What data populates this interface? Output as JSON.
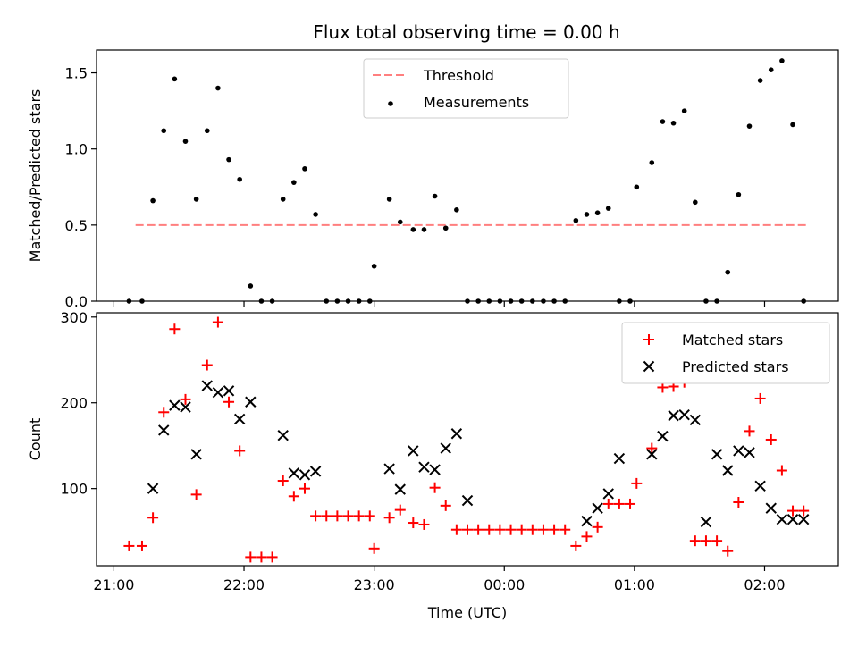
{
  "figure_title": "Flux total observing time = 0.00 h",
  "colors": {
    "threshold": "#ff7f7f",
    "measurements": "#000000",
    "matched": "#ff0000",
    "predicted": "#000000",
    "axes": "#000000"
  },
  "chart_data": [
    {
      "id": "ratio",
      "type": "scatter",
      "title": "Flux total observing time = 0.00 h",
      "xlabel": "",
      "ylabel": "Matched/Predicted stars",
      "xlim": [
        "20:52",
        "02:34"
      ],
      "ylim": [
        0,
        1.65
      ],
      "yticks": [
        0.0,
        0.5,
        1.0,
        1.5
      ],
      "ytick_labels": [
        "0.0",
        "0.5",
        "1.0",
        "1.5"
      ],
      "legend": "top-center",
      "series": [
        {
          "name": "Threshold",
          "style": "dashed-line",
          "x": [
            "21:10",
            "02:20"
          ],
          "y": [
            0.5,
            0.5
          ]
        },
        {
          "name": "Measurements",
          "style": "dot",
          "x": [
            "21:07",
            "21:13",
            "21:18",
            "21:23",
            "21:28",
            "21:33",
            "21:38",
            "21:43",
            "21:48",
            "21:53",
            "21:58",
            "22:03",
            "22:08",
            "22:13",
            "22:18",
            "22:23",
            "22:28",
            "22:33",
            "22:38",
            "22:43",
            "22:48",
            "22:53",
            "22:58",
            "23:00",
            "23:07",
            "23:12",
            "23:18",
            "23:23",
            "23:28",
            "23:33",
            "23:38",
            "23:43",
            "23:48",
            "23:53",
            "23:58",
            "00:03",
            "00:08",
            "00:13",
            "00:18",
            "00:23",
            "00:28",
            "00:33",
            "00:38",
            "00:43",
            "00:48",
            "00:53",
            "00:58",
            "01:01",
            "01:08",
            "01:13",
            "01:18",
            "01:23",
            "01:28",
            "01:33",
            "01:38",
            "01:43",
            "01:48",
            "01:53",
            "01:58",
            "02:03",
            "02:08",
            "02:13",
            "02:18"
          ],
          "y": [
            0.0,
            0.0,
            0.66,
            1.12,
            1.46,
            1.05,
            0.67,
            1.12,
            1.4,
            0.93,
            0.8,
            0.1,
            0.0,
            0.0,
            0.67,
            0.78,
            0.87,
            0.57,
            0.0,
            0.0,
            0.0,
            0.0,
            0.0,
            0.23,
            0.67,
            0.52,
            0.47,
            0.47,
            0.69,
            0.48,
            0.6,
            0.0,
            0.0,
            0.0,
            0.0,
            0.0,
            0.0,
            0.0,
            0.0,
            0.0,
            0.0,
            0.53,
            0.57,
            0.58,
            0.61,
            0.0,
            0.0,
            0.75,
            0.91,
            1.18,
            1.17,
            1.25,
            0.65,
            0.0,
            0.0,
            0.19,
            0.7,
            1.15,
            1.45,
            1.52,
            1.58,
            1.16,
            0.0
          ]
        }
      ]
    },
    {
      "id": "counts",
      "type": "scatter",
      "title": "",
      "xlabel": "Time (UTC)",
      "ylabel": "Count",
      "xlim": [
        "20:52",
        "02:34"
      ],
      "xticks": [
        "21:00",
        "22:00",
        "23:00",
        "00:00",
        "01:00",
        "02:00"
      ],
      "ylim": [
        10,
        305
      ],
      "yticks": [
        100,
        200,
        300
      ],
      "ytick_labels": [
        "100",
        "200",
        "300"
      ],
      "legend": "top-right",
      "series": [
        {
          "name": "Matched stars",
          "marker": "plus",
          "x": [
            "21:07",
            "21:13",
            "21:18",
            "21:23",
            "21:28",
            "21:33",
            "21:38",
            "21:43",
            "21:48",
            "21:53",
            "21:58",
            "22:03",
            "22:08",
            "22:13",
            "22:18",
            "22:23",
            "22:28",
            "22:33",
            "22:38",
            "22:43",
            "22:48",
            "22:53",
            "22:58",
            "23:00",
            "23:07",
            "23:12",
            "23:18",
            "23:23",
            "23:28",
            "23:33",
            "23:38",
            "23:43",
            "23:48",
            "23:53",
            "23:58",
            "00:03",
            "00:08",
            "00:13",
            "00:18",
            "00:23",
            "00:28",
            "00:33",
            "00:38",
            "00:43",
            "00:48",
            "00:53",
            "00:58",
            "01:01",
            "01:08",
            "01:13",
            "01:18",
            "01:23",
            "01:28",
            "01:33",
            "01:38",
            "01:43",
            "01:48",
            "01:53",
            "01:58",
            "02:03",
            "02:08",
            "02:13",
            "02:18"
          ],
          "y": [
            33,
            33,
            66,
            189,
            286,
            204,
            93,
            244,
            294,
            201,
            144,
            20,
            20,
            20,
            109,
            91,
            100,
            68,
            68,
            68,
            68,
            68,
            68,
            30,
            66,
            75,
            60,
            58,
            101,
            80,
            52,
            52,
            52,
            52,
            52,
            52,
            52,
            52,
            52,
            52,
            52,
            33,
            44,
            55,
            82,
            82,
            82,
            106,
            147,
            218,
            219,
            224,
            39,
            39,
            39,
            27,
            84,
            167,
            205,
            157,
            121,
            74,
            74
          ]
        },
        {
          "name": "Predicted stars",
          "marker": "x",
          "x": [
            "21:18",
            "21:23",
            "21:28",
            "21:33",
            "21:38",
            "21:43",
            "21:48",
            "21:53",
            "21:58",
            "22:03",
            "22:18",
            "22:23",
            "22:28",
            "22:33",
            "23:07",
            "23:12",
            "23:18",
            "23:23",
            "23:28",
            "23:33",
            "23:38",
            "23:43",
            "00:38",
            "00:43",
            "00:48",
            "00:53",
            "01:08",
            "01:13",
            "01:18",
            "01:23",
            "01:28",
            "01:33",
            "01:38",
            "01:43",
            "01:48",
            "01:53",
            "01:58",
            "02:03",
            "02:08",
            "02:13",
            "02:18"
          ],
          "y": [
            100,
            168,
            197,
            195,
            140,
            220,
            212,
            214,
            181,
            201,
            162,
            118,
            116,
            120,
            123,
            99,
            144,
            125,
            122,
            147,
            164,
            86,
            62,
            77,
            94,
            135,
            140,
            161,
            185,
            186,
            180,
            61,
            140,
            121,
            144,
            142,
            103,
            77,
            64,
            64,
            64
          ]
        }
      ]
    }
  ]
}
